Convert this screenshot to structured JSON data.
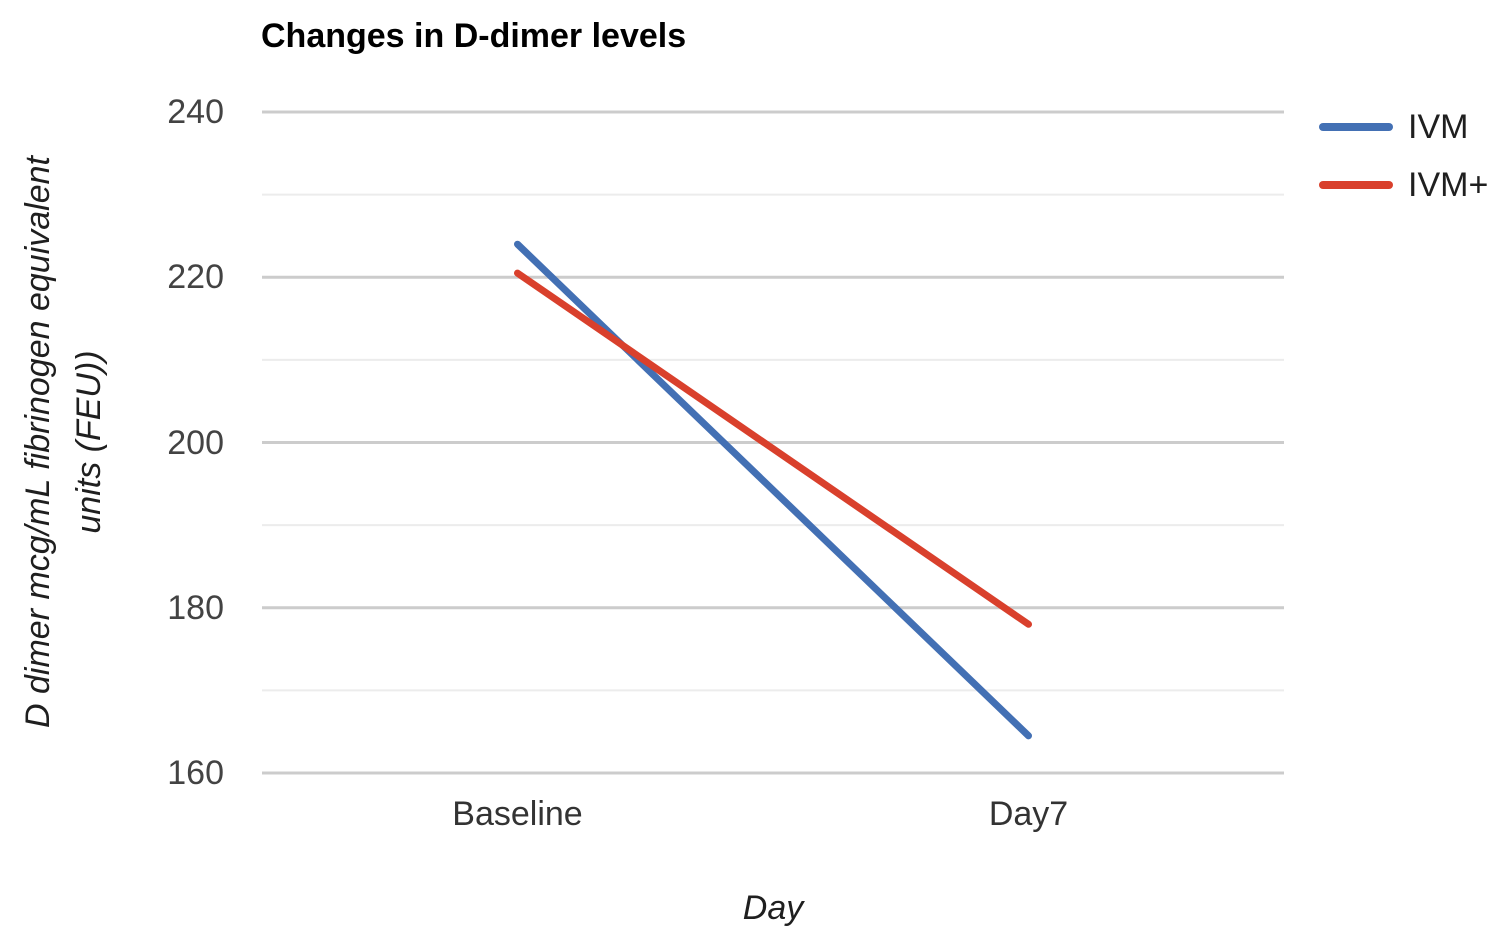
{
  "chart_data": {
    "type": "line",
    "title": "Changes in D-dimer levels",
    "xlabel": "Day",
    "ylabel": "D dimer mcg/mL fibrinogen equivalent units (FEU))",
    "ylabel_lines": [
      "D dimer mcg/mL fibrinogen equivalent",
      "units (FEU))"
    ],
    "categories": [
      "Baseline",
      "Day7"
    ],
    "series": [
      {
        "name": "IVM",
        "color": "#4370B4",
        "values": [
          224,
          164.5
        ]
      },
      {
        "name": "IVM+",
        "color": "#D9402C",
        "values": [
          220.5,
          178
        ]
      }
    ],
    "ylim": [
      160,
      240
    ],
    "yticks": [
      160,
      180,
      200,
      220,
      240
    ],
    "minor_yticks": [
      170,
      190,
      210,
      230
    ],
    "legend": {
      "position": "top-right",
      "entries": [
        "IVM",
        "IVM+"
      ]
    },
    "grid": {
      "major_color": "#cccccc",
      "minor_color": "#ececec"
    },
    "background": "#ffffff"
  }
}
